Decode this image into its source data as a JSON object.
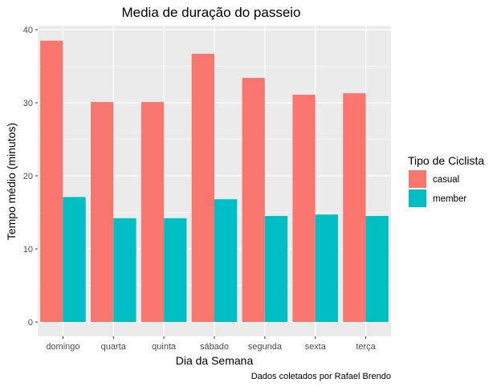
{
  "chart_data": {
    "type": "bar",
    "title": "Media de duração do passeio",
    "xlabel": "Dia da Semana",
    "ylabel": "Tempo médio (minutos)",
    "caption": "Dados coletados por Rafael Brendo",
    "categories": [
      "domingo",
      "quarta",
      "quinta",
      "sábado",
      "segunda",
      "sexta",
      "terça"
    ],
    "series": [
      {
        "name": "casual",
        "color": "#F8766D",
        "values": [
          38.5,
          30.1,
          30.1,
          36.7,
          33.4,
          31.1,
          31.3
        ]
      },
      {
        "name": "member",
        "color": "#00BFC4",
        "values": [
          17.1,
          14.2,
          14.2,
          16.8,
          14.5,
          14.7,
          14.5
        ]
      }
    ],
    "ylim": [
      0,
      40
    ],
    "yticks": [
      0,
      10,
      20,
      30,
      40
    ],
    "grid": true,
    "legend": {
      "title": "Tipo de Ciclista",
      "position": "right"
    }
  }
}
